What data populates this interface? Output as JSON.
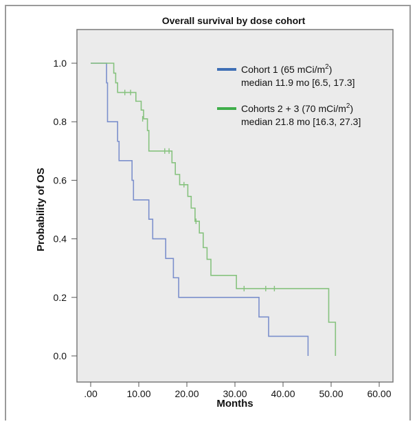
{
  "chart_data": {
    "type": "line",
    "subtype": "kaplan-meier step",
    "title": "Overall survival by dose cohort",
    "xlabel": "Months",
    "ylabel": "Probability of OS",
    "xlim": [
      0,
      60
    ],
    "ylim": [
      0,
      1
    ],
    "x_ticks": [
      ".00",
      "10.00",
      "20.00",
      "30.00",
      "40.00",
      "50.00",
      "60.00"
    ],
    "y_ticks": [
      "0.0",
      "0.2",
      "0.4",
      "0.6",
      "0.8",
      "1.0"
    ],
    "grid": false,
    "background": "#ebebeb",
    "legend_position": "top-right",
    "series": [
      {
        "name_main": "Cohort 1 (65 mCi/m",
        "name_sup": "2",
        "name_close": ")",
        "median_text": "median 11.9 mo [6.5, 17.3]",
        "color": "#7b8fcc",
        "legend_color": "#3f6fb5",
        "steps": [
          [
            0,
            1.0
          ],
          [
            3.3,
            0.933
          ],
          [
            3.5,
            0.8
          ],
          [
            5.6,
            0.733
          ],
          [
            5.9,
            0.667
          ],
          [
            8.6,
            0.6
          ],
          [
            8.9,
            0.533
          ],
          [
            12.1,
            0.467
          ],
          [
            12.9,
            0.4
          ],
          [
            15.6,
            0.333
          ],
          [
            17.2,
            0.267
          ],
          [
            18.3,
            0.2
          ],
          [
            35.0,
            0.133
          ],
          [
            37.0,
            0.067
          ],
          [
            45.2,
            0.0
          ]
        ],
        "end_x": 45.2,
        "censored": []
      },
      {
        "name_main": "Cohorts 2 + 3 (70 mCi/m",
        "name_sup": "2",
        "name_close": ")",
        "median_text": "median 21.8 mo [16.3, 27.3]",
        "color": "#86c27e",
        "legend_color": "#3fae4a",
        "steps": [
          [
            0,
            1.0
          ],
          [
            4.8,
            0.966
          ],
          [
            5.2,
            0.933
          ],
          [
            5.6,
            0.9
          ],
          [
            9.4,
            0.87
          ],
          [
            10.5,
            0.84
          ],
          [
            11.0,
            0.81
          ],
          [
            11.8,
            0.77
          ],
          [
            12.1,
            0.7
          ],
          [
            16.9,
            0.66
          ],
          [
            17.6,
            0.62
          ],
          [
            18.5,
            0.585
          ],
          [
            20.2,
            0.545
          ],
          [
            20.9,
            0.505
          ],
          [
            21.7,
            0.46
          ],
          [
            22.6,
            0.42
          ],
          [
            23.4,
            0.37
          ],
          [
            24.2,
            0.33
          ],
          [
            25.0,
            0.275
          ],
          [
            30.3,
            0.23
          ],
          [
            49.5,
            0.115
          ],
          [
            50.9,
            0.0
          ]
        ],
        "end_x": 50.9,
        "censored": [
          [
            7.1,
            0.9
          ],
          [
            8.3,
            0.9
          ],
          [
            10.8,
            0.81
          ],
          [
            15.4,
            0.7
          ],
          [
            16.3,
            0.7
          ],
          [
            19.4,
            0.585
          ],
          [
            21.9,
            0.46
          ],
          [
            31.9,
            0.23
          ],
          [
            36.4,
            0.23
          ],
          [
            38.2,
            0.23
          ]
        ]
      }
    ]
  }
}
